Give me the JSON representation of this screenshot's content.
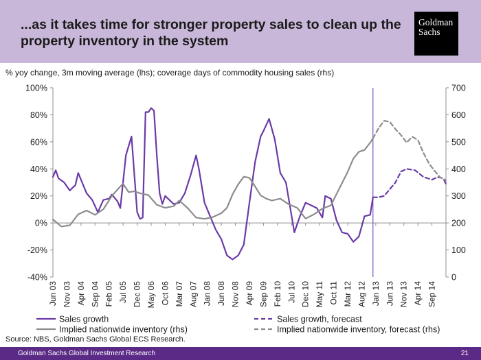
{
  "header": {
    "title": "...as it takes time for stronger property sales to clean up the property inventory in the system",
    "logo_line1": "Goldman",
    "logo_line2": "Sachs"
  },
  "footer": {
    "source": "Source: NBS, Goldman Sachs Global ECS Research.",
    "org": "Goldman Sachs Global Investment Research",
    "page_number": "21"
  },
  "colors": {
    "header_bg": "#c8b7d9",
    "footer_bg": "#5b2a86",
    "sales": "#6a3aa6",
    "inventory": "#8c8c8c"
  },
  "chart_data": {
    "type": "line",
    "subtitle": "% yoy change, 3m moving average (lhs); coverage days of commodity housing sales (rhs)",
    "x_tick_labels": [
      "Jun 03",
      "Nov 03",
      "Apr 04",
      "Sep 04",
      "Feb 05",
      "Jul 05",
      "Dec 05",
      "May 06",
      "Oct 06",
      "Mar 07",
      "Aug 07",
      "Jan 08",
      "Jun 08",
      "Nov 08",
      "Apr 09",
      "Sep 09",
      "Feb 10",
      "Jul 10",
      "Dec 10",
      "May 11",
      "Oct 11",
      "Mar 12",
      "Aug 12",
      "Jan 13",
      "Jun 13",
      "Nov 13",
      "Apr 14",
      "Sep 14"
    ],
    "x_range": [
      "Jun 03",
      "Feb 15"
    ],
    "y_left": {
      "range": [
        -40,
        100
      ],
      "ticks": [
        "-40%",
        "-20%",
        "0%",
        "20%",
        "40%",
        "60%",
        "80%",
        "100%"
      ],
      "unit": "%"
    },
    "y_right": {
      "range": [
        0,
        700
      ],
      "ticks": [
        "0",
        "100",
        "200",
        "300",
        "400",
        "500",
        "600",
        "700"
      ]
    },
    "grid": false,
    "legend_position": "bottom",
    "vertical_marker": "Dec 12",
    "series": [
      {
        "name": "Sales growth",
        "axis": "left",
        "style": "solid",
        "color": "#6a3aa6",
        "points": [
          [
            "Jun 03",
            34
          ],
          [
            "Jul 03",
            39
          ],
          [
            "Aug 03",
            33
          ],
          [
            "Oct 03",
            30
          ],
          [
            "Dec 03",
            24
          ],
          [
            "Feb 04",
            28
          ],
          [
            "Mar 04",
            37
          ],
          [
            "Jun 04",
            22
          ],
          [
            "Aug 04",
            17
          ],
          [
            "Oct 04",
            8
          ],
          [
            "Dec 04",
            17
          ],
          [
            "Feb 05",
            18
          ],
          [
            "Mar 05",
            21
          ],
          [
            "May 05",
            16
          ],
          [
            "Jun 05",
            11
          ],
          [
            "Aug 05",
            50
          ],
          [
            "Oct 05",
            64
          ],
          [
            "Dec 05",
            8
          ],
          [
            "Jan 06",
            3
          ],
          [
            "Feb 06",
            4
          ],
          [
            "Mar 06",
            82
          ],
          [
            "Apr 06",
            82
          ],
          [
            "May 06",
            85
          ],
          [
            "Jun 06",
            83
          ],
          [
            "Jul 06",
            50
          ],
          [
            "Aug 06",
            22
          ],
          [
            "Sep 06",
            14
          ],
          [
            "Oct 06",
            20
          ],
          [
            "Nov 06",
            18
          ],
          [
            "Jan 07",
            14
          ],
          [
            "Mar 07",
            15
          ],
          [
            "May 07",
            22
          ],
          [
            "Jul 07",
            35
          ],
          [
            "Sep 07",
            50
          ],
          [
            "Oct 07",
            40
          ],
          [
            "Dec 07",
            15
          ],
          [
            "Feb 08",
            5
          ],
          [
            "Apr 08",
            -5
          ],
          [
            "Jun 08",
            -12
          ],
          [
            "Aug 08",
            -24
          ],
          [
            "Oct 08",
            -27
          ],
          [
            "Dec 08",
            -24
          ],
          [
            "Feb 09",
            -16
          ],
          [
            "Apr 09",
            15
          ],
          [
            "Jun 09",
            45
          ],
          [
            "Aug 09",
            64
          ],
          [
            "Sep 09",
            68
          ],
          [
            "Nov 09",
            77
          ],
          [
            "Jan 10",
            62
          ],
          [
            "Mar 10",
            37
          ],
          [
            "May 10",
            30
          ],
          [
            "Aug 10",
            -7
          ],
          [
            "Oct 10",
            5
          ],
          [
            "Dec 10",
            15
          ],
          [
            "Feb 11",
            13
          ],
          [
            "Apr 11",
            11
          ],
          [
            "Jun 11",
            4
          ],
          [
            "Jul 11",
            20
          ],
          [
            "Sep 11",
            18
          ],
          [
            "Nov 11",
            2
          ],
          [
            "Jan 12",
            -7
          ],
          [
            "Mar 12",
            -8
          ],
          [
            "May 12",
            -14
          ],
          [
            "Jul 12",
            -10
          ],
          [
            "Sep 12",
            5
          ],
          [
            "Nov 12",
            6
          ],
          [
            "Dec 12",
            19
          ]
        ]
      },
      {
        "name": "Sales growth, forecast",
        "axis": "left",
        "style": "dashed",
        "color": "#6a3aa6",
        "points": [
          [
            "Dec 12",
            19
          ],
          [
            "Feb 13",
            19
          ],
          [
            "Apr 13",
            20
          ],
          [
            "Jun 13",
            25
          ],
          [
            "Aug 13",
            30
          ],
          [
            "Oct 13",
            38
          ],
          [
            "Dec 13",
            40
          ],
          [
            "Mar 14",
            39
          ],
          [
            "Jun 14",
            34
          ],
          [
            "Sep 14",
            32
          ],
          [
            "Nov 14",
            34
          ],
          [
            "Jan 15",
            33
          ],
          [
            "Feb 15",
            29
          ]
        ]
      },
      {
        "name": "Implied nationwide inventory (rhs)",
        "axis": "right",
        "style": "solid",
        "color": "#8c8c8c",
        "points": [
          [
            "Jun 03",
            213
          ],
          [
            "Sep 03",
            187
          ],
          [
            "Dec 03",
            191
          ],
          [
            "Mar 04",
            232
          ],
          [
            "Jun 04",
            246
          ],
          [
            "Sep 04",
            230
          ],
          [
            "Dec 04",
            251
          ],
          [
            "Mar 05",
            300
          ],
          [
            "Jun 05",
            335
          ],
          [
            "Jul 05",
            345
          ],
          [
            "Sep 05",
            314
          ],
          [
            "Nov 05",
            317
          ],
          [
            "Jan 06",
            310
          ],
          [
            "Apr 06",
            303
          ],
          [
            "Jul 06",
            267
          ],
          [
            "Oct 06",
            256
          ],
          [
            "Jan 07",
            262
          ],
          [
            "Mar 07",
            283
          ],
          [
            "Jun 07",
            255
          ],
          [
            "Sep 07",
            220
          ],
          [
            "Dec 07",
            215
          ],
          [
            "Mar 08",
            222
          ],
          [
            "Jun 08",
            236
          ],
          [
            "Aug 08",
            256
          ],
          [
            "Oct 08",
            306
          ],
          [
            "Dec 08",
            343
          ],
          [
            "Feb 09",
            371
          ],
          [
            "Apr 09",
            367
          ],
          [
            "Jun 09",
            335
          ],
          [
            "Aug 09",
            302
          ],
          [
            "Oct 09",
            290
          ],
          [
            "Dec 09",
            283
          ],
          [
            "Mar 10",
            290
          ],
          [
            "Jun 10",
            269
          ],
          [
            "Sep 10",
            256
          ],
          [
            "Dec 10",
            216
          ],
          [
            "Mar 11",
            232
          ],
          [
            "Jun 11",
            253
          ],
          [
            "Sep 11",
            265
          ],
          [
            "Dec 11",
            327
          ],
          [
            "Mar 12",
            389
          ],
          [
            "May 12",
            438
          ],
          [
            "Jul 12",
            463
          ],
          [
            "Sep 12",
            470
          ],
          [
            "Nov 12",
            497
          ],
          [
            "Dec 12",
            513
          ]
        ]
      },
      {
        "name": "Implied nationwide inventory, forecast (rhs)",
        "axis": "right",
        "style": "dashed",
        "color": "#8c8c8c",
        "points": [
          [
            "Dec 12",
            513
          ],
          [
            "Feb 13",
            550
          ],
          [
            "Apr 13",
            578
          ],
          [
            "Jun 13",
            574
          ],
          [
            "Aug 13",
            547
          ],
          [
            "Oct 13",
            525
          ],
          [
            "Dec 13",
            497
          ],
          [
            "Feb 14",
            519
          ],
          [
            "Apr 14",
            507
          ],
          [
            "Jun 14",
            459
          ],
          [
            "Aug 14",
            419
          ],
          [
            "Oct 14",
            392
          ],
          [
            "Dec 14",
            368
          ],
          [
            "Feb 15",
            359
          ]
        ]
      }
    ]
  }
}
